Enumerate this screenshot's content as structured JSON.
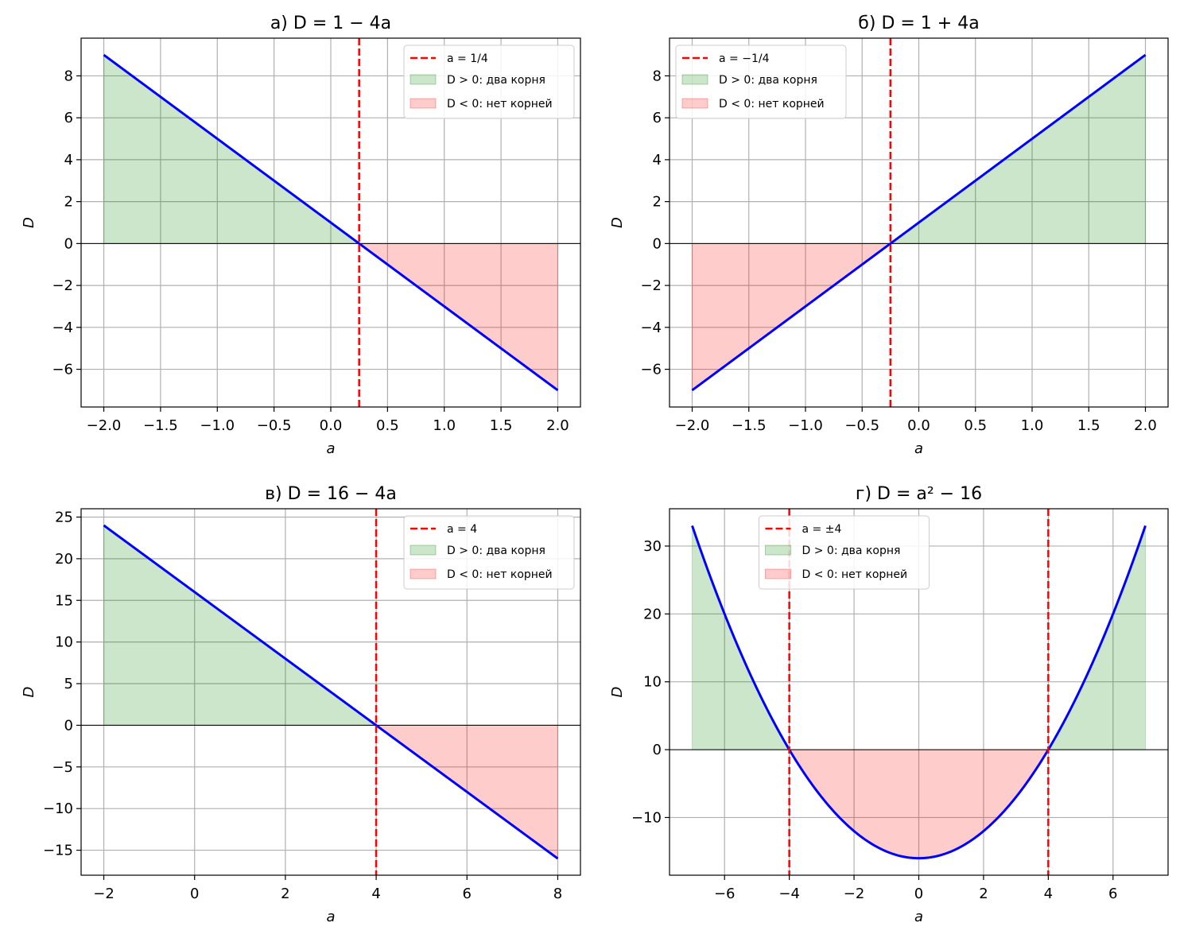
{
  "colors": {
    "curve": "#0000ff",
    "threshold": "#ff0000",
    "positive_fill": "#008000",
    "negative_fill": "#ff0000",
    "grid": "#b0b0b0",
    "zero_line": "#000000"
  },
  "chart_data": [
    {
      "type": "line",
      "title": "а) D = 1 − 4a",
      "xlabel": "a",
      "ylabel": "D",
      "xlim": [
        -2.2,
        2.2
      ],
      "ylim": [
        -7.8,
        9.8
      ],
      "xticks": [
        -2.0,
        -1.5,
        -1.0,
        -0.5,
        0.0,
        0.5,
        1.0,
        1.5,
        2.0
      ],
      "xtick_labels": [
        "−2.0",
        "−1.5",
        "−1.0",
        "−0.5",
        "0.0",
        "0.5",
        "1.0",
        "1.5",
        "2.0"
      ],
      "yticks": [
        8,
        6,
        4,
        2,
        0,
        -2,
        -4,
        -6
      ],
      "ytick_labels": [
        "8",
        "6",
        "4",
        "2",
        "0",
        "−2",
        "−4",
        "−6"
      ],
      "grid": true,
      "legend_position": "top-right",
      "function": {
        "kind": "linear",
        "c0": 1,
        "c1": -4,
        "c2": 0
      },
      "x_range": [
        -2,
        2
      ],
      "series": [
        {
          "x": [
            -2,
            -1.5,
            -1,
            -0.5,
            0,
            0.25,
            0.5,
            1,
            1.5,
            2
          ],
          "y": [
            9,
            7,
            5,
            3,
            1,
            0,
            -1,
            -3,
            -5,
            -7
          ]
        }
      ],
      "thresholds": [
        0.25
      ],
      "legend": [
        "a = 1/4",
        "D > 0: два корня",
        "D < 0: нет корней"
      ]
    },
    {
      "type": "line",
      "title": "б) D = 1 + 4a",
      "xlabel": "a",
      "ylabel": "D",
      "xlim": [
        -2.2,
        2.2
      ],
      "ylim": [
        -7.8,
        9.8
      ],
      "xticks": [
        -2.0,
        -1.5,
        -1.0,
        -0.5,
        0.0,
        0.5,
        1.0,
        1.5,
        2.0
      ],
      "xtick_labels": [
        "−2.0",
        "−1.5",
        "−1.0",
        "−0.5",
        "0.0",
        "0.5",
        "1.0",
        "1.5",
        "2.0"
      ],
      "yticks": [
        8,
        6,
        4,
        2,
        0,
        -2,
        -4,
        -6
      ],
      "ytick_labels": [
        "8",
        "6",
        "4",
        "2",
        "0",
        "−2",
        "−4",
        "−6"
      ],
      "grid": true,
      "legend_position": "top-left",
      "function": {
        "kind": "linear",
        "c0": 1,
        "c1": 4,
        "c2": 0
      },
      "x_range": [
        -2,
        2
      ],
      "series": [
        {
          "x": [
            -2,
            -1.5,
            -1,
            -0.5,
            -0.25,
            0,
            0.5,
            1,
            1.5,
            2
          ],
          "y": [
            -7,
            -5,
            -3,
            -1,
            0,
            1,
            3,
            5,
            7,
            9
          ]
        }
      ],
      "thresholds": [
        -0.25
      ],
      "legend": [
        "a = −1/4",
        "D > 0: два корня",
        "D < 0: нет корней"
      ]
    },
    {
      "type": "line",
      "title": "в) D = 16 − 4a",
      "xlabel": "a",
      "ylabel": "D",
      "xlim": [
        -2.5,
        8.5
      ],
      "ylim": [
        -18,
        26
      ],
      "xticks": [
        -2,
        0,
        2,
        4,
        6,
        8
      ],
      "xtick_labels": [
        "−2",
        "0",
        "2",
        "4",
        "6",
        "8"
      ],
      "yticks": [
        25,
        20,
        15,
        10,
        5,
        0,
        -5,
        -10,
        -15
      ],
      "ytick_labels": [
        "25",
        "20",
        "15",
        "10",
        "5",
        "0",
        "−5",
        "−10",
        "−15"
      ],
      "grid": true,
      "legend_position": "top-right",
      "function": {
        "kind": "linear",
        "c0": 16,
        "c1": -4,
        "c2": 0
      },
      "x_range": [
        -2,
        8
      ],
      "series": [
        {
          "x": [
            -2,
            0,
            2,
            4,
            6,
            8
          ],
          "y": [
            24,
            16,
            8,
            0,
            -8,
            -16
          ]
        }
      ],
      "thresholds": [
        4
      ],
      "legend": [
        "a = 4",
        "D > 0: два корня",
        "D < 0: нет корней"
      ]
    },
    {
      "type": "line",
      "title": "г) D = a² − 16",
      "xlabel": "a",
      "ylabel": "D",
      "xlim": [
        -7.7,
        7.7
      ],
      "ylim": [
        -18.5,
        35.5
      ],
      "xticks": [
        -6,
        -4,
        -2,
        0,
        2,
        4,
        6
      ],
      "xtick_labels": [
        "−6",
        "−4",
        "−2",
        "0",
        "2",
        "4",
        "6"
      ],
      "yticks": [
        30,
        20,
        10,
        0,
        -10
      ],
      "ytick_labels": [
        "30",
        "20",
        "10",
        "0",
        "−10"
      ],
      "grid": true,
      "legend_position": "top-center",
      "function": {
        "kind": "quadratic",
        "c0": -16,
        "c1": 0,
        "c2": 1
      },
      "x_range": [
        -7,
        7
      ],
      "series": [
        {
          "x": [
            -7,
            -6,
            -5,
            -4,
            -3,
            -2,
            -1,
            0,
            1,
            2,
            3,
            4,
            5,
            6,
            7
          ],
          "y": [
            33,
            20,
            9,
            0,
            -7,
            -12,
            -15,
            -16,
            -15,
            -12,
            -7,
            0,
            9,
            20,
            33
          ]
        }
      ],
      "thresholds": [
        -4,
        4
      ],
      "legend": [
        "a = ±4",
        "D > 0: два корня",
        "D < 0: нет корней"
      ]
    }
  ]
}
